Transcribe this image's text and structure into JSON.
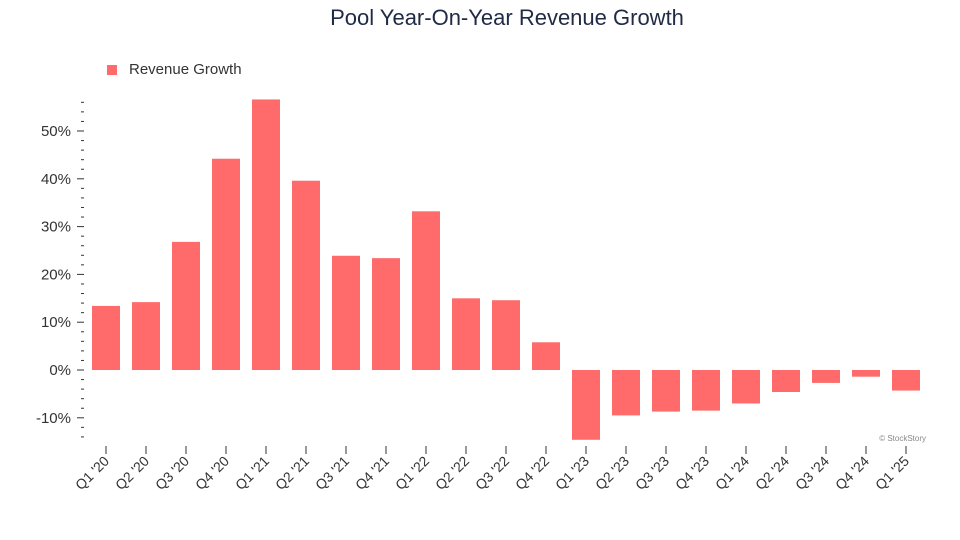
{
  "chart_data": {
    "type": "bar",
    "title": "Pool Year-On-Year Revenue Growth",
    "xlabel": "",
    "ylabel": "",
    "legend": {
      "position": "top-left",
      "entries": [
        "Revenue Growth"
      ]
    },
    "grid": false,
    "ylim": [
      -15,
      57
    ],
    "yticks": [
      -10,
      0,
      10,
      20,
      30,
      40,
      50
    ],
    "ytick_labels": [
      "-10%",
      "0%",
      "10%",
      "20%",
      "30%",
      "40%",
      "50%"
    ],
    "categories": [
      "Q1 '20",
      "Q2 '20",
      "Q3 '20",
      "Q4 '20",
      "Q1 '21",
      "Q2 '21",
      "Q3 '21",
      "Q4 '21",
      "Q1 '22",
      "Q2 '22",
      "Q3 '22",
      "Q4 '22",
      "Q1 '23",
      "Q2 '23",
      "Q3 '23",
      "Q4 '23",
      "Q1 '24",
      "Q2 '24",
      "Q3 '24",
      "Q4 '24",
      "Q1 '25"
    ],
    "series": [
      {
        "name": "Revenue Growth",
        "color": "#ff6b6b",
        "values": [
          13.4,
          14.2,
          26.8,
          44.2,
          56.6,
          39.6,
          23.9,
          23.4,
          33.2,
          15.0,
          14.6,
          5.8,
          -14.6,
          -9.5,
          -8.7,
          -8.5,
          -7.0,
          -4.6,
          -2.7,
          -1.4,
          -4.3
        ]
      }
    ],
    "watermark": "© StockStory"
  }
}
